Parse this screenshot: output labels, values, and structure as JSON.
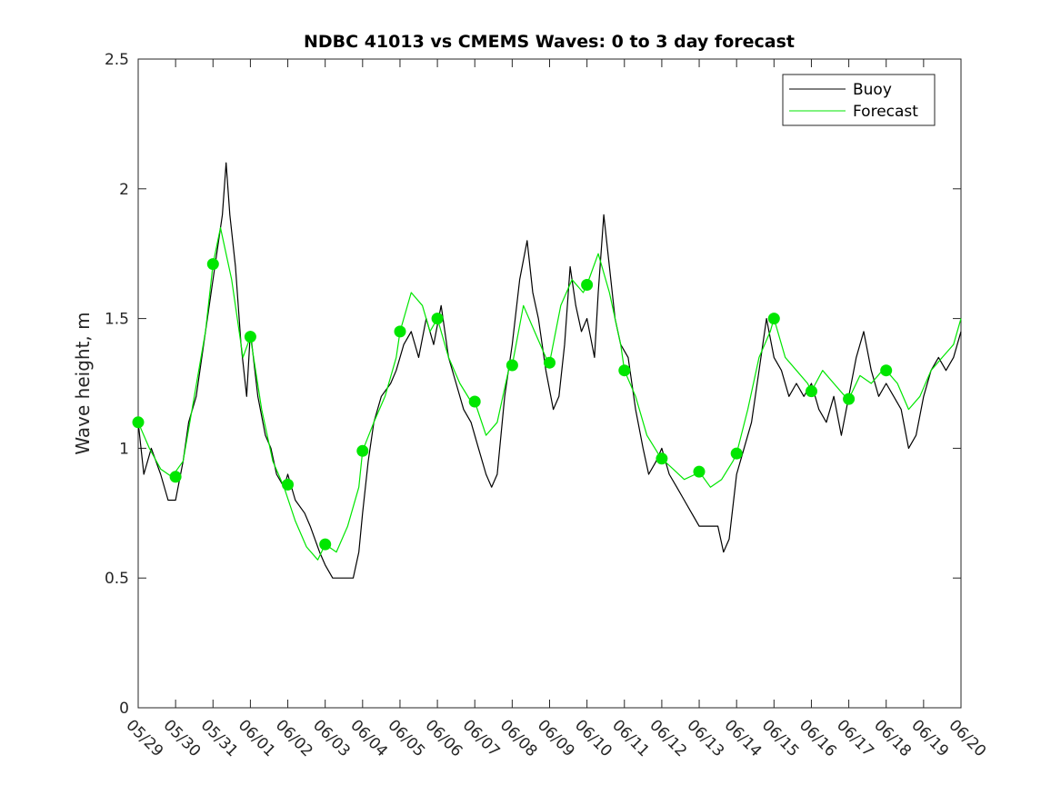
{
  "chart_data": {
    "type": "line",
    "title": "NDBC 41013 vs CMEMS Waves: 0 to 3 day forecast",
    "xlabel": "",
    "ylabel": "Wave height, m",
    "ylim": [
      0,
      2.5
    ],
    "yticks": [
      "0",
      "0.5",
      "1",
      "1.5",
      "2",
      "2.5"
    ],
    "xticks": [
      "05/29",
      "05/30",
      "05/31",
      "06/01",
      "06/02",
      "06/03",
      "06/04",
      "06/05",
      "06/06",
      "06/07",
      "06/08",
      "06/09",
      "06/10",
      "06/11",
      "06/12",
      "06/13",
      "06/14",
      "06/15",
      "06/16",
      "06/17",
      "06/18",
      "06/19",
      "06/20"
    ],
    "grid": false,
    "legend_position": "top-right",
    "legend": [
      {
        "label": "Buoy",
        "color": "#000000"
      },
      {
        "label": "Forecast",
        "color": "#00e600"
      }
    ],
    "series": [
      {
        "name": "Buoy",
        "color": "#000000",
        "points": [
          [
            0,
            1.1
          ],
          [
            0.15,
            0.9
          ],
          [
            0.35,
            1.0
          ],
          [
            0.6,
            0.9
          ],
          [
            0.8,
            0.8
          ],
          [
            1.0,
            0.8
          ],
          [
            1.2,
            0.95
          ],
          [
            1.35,
            1.1
          ],
          [
            1.55,
            1.2
          ],
          [
            1.75,
            1.4
          ],
          [
            1.95,
            1.6
          ],
          [
            2.1,
            1.75
          ],
          [
            2.25,
            1.9
          ],
          [
            2.35,
            2.1
          ],
          [
            2.45,
            1.9
          ],
          [
            2.6,
            1.7
          ],
          [
            2.75,
            1.4
          ],
          [
            2.9,
            1.2
          ],
          [
            3.0,
            1.45
          ],
          [
            3.2,
            1.2
          ],
          [
            3.4,
            1.05
          ],
          [
            3.55,
            1.0
          ],
          [
            3.7,
            0.9
          ],
          [
            3.9,
            0.85
          ],
          [
            4.0,
            0.9
          ],
          [
            4.2,
            0.8
          ],
          [
            4.45,
            0.75
          ],
          [
            4.6,
            0.7
          ],
          [
            4.85,
            0.6
          ],
          [
            5.0,
            0.55
          ],
          [
            5.2,
            0.5
          ],
          [
            5.4,
            0.5
          ],
          [
            5.6,
            0.5
          ],
          [
            5.75,
            0.5
          ],
          [
            5.9,
            0.6
          ],
          [
            6.0,
            0.75
          ],
          [
            6.15,
            0.95
          ],
          [
            6.3,
            1.1
          ],
          [
            6.5,
            1.2
          ],
          [
            6.75,
            1.25
          ],
          [
            6.9,
            1.3
          ],
          [
            7.1,
            1.4
          ],
          [
            7.3,
            1.45
          ],
          [
            7.5,
            1.35
          ],
          [
            7.7,
            1.5
          ],
          [
            7.9,
            1.4
          ],
          [
            8.1,
            1.55
          ],
          [
            8.3,
            1.35
          ],
          [
            8.5,
            1.25
          ],
          [
            8.7,
            1.15
          ],
          [
            8.9,
            1.1
          ],
          [
            9.1,
            1.0
          ],
          [
            9.3,
            0.9
          ],
          [
            9.45,
            0.85
          ],
          [
            9.6,
            0.9
          ],
          [
            9.8,
            1.2
          ],
          [
            10.0,
            1.4
          ],
          [
            10.2,
            1.65
          ],
          [
            10.4,
            1.8
          ],
          [
            10.55,
            1.6
          ],
          [
            10.7,
            1.5
          ],
          [
            10.9,
            1.3
          ],
          [
            11.1,
            1.15
          ],
          [
            11.25,
            1.2
          ],
          [
            11.4,
            1.4
          ],
          [
            11.55,
            1.7
          ],
          [
            11.7,
            1.55
          ],
          [
            11.85,
            1.45
          ],
          [
            12.0,
            1.5
          ],
          [
            12.2,
            1.35
          ],
          [
            12.3,
            1.6
          ],
          [
            12.45,
            1.9
          ],
          [
            12.6,
            1.7
          ],
          [
            12.75,
            1.5
          ],
          [
            12.9,
            1.4
          ],
          [
            13.1,
            1.35
          ],
          [
            13.3,
            1.15
          ],
          [
            13.5,
            1.0
          ],
          [
            13.65,
            0.9
          ],
          [
            13.85,
            0.95
          ],
          [
            14.0,
            1.0
          ],
          [
            14.2,
            0.9
          ],
          [
            14.4,
            0.85
          ],
          [
            14.6,
            0.8
          ],
          [
            14.8,
            0.75
          ],
          [
            15.0,
            0.7
          ],
          [
            15.3,
            0.7
          ],
          [
            15.5,
            0.7
          ],
          [
            15.65,
            0.6
          ],
          [
            15.8,
            0.65
          ],
          [
            16.0,
            0.9
          ],
          [
            16.2,
            1.0
          ],
          [
            16.4,
            1.1
          ],
          [
            16.6,
            1.3
          ],
          [
            16.8,
            1.5
          ],
          [
            17.0,
            1.35
          ],
          [
            17.2,
            1.3
          ],
          [
            17.4,
            1.2
          ],
          [
            17.6,
            1.25
          ],
          [
            17.8,
            1.2
          ],
          [
            18.0,
            1.25
          ],
          [
            18.2,
            1.15
          ],
          [
            18.4,
            1.1
          ],
          [
            18.6,
            1.2
          ],
          [
            18.8,
            1.05
          ],
          [
            19.0,
            1.2
          ],
          [
            19.2,
            1.35
          ],
          [
            19.4,
            1.45
          ],
          [
            19.6,
            1.3
          ],
          [
            19.8,
            1.2
          ],
          [
            20.0,
            1.25
          ],
          [
            20.2,
            1.2
          ],
          [
            20.4,
            1.15
          ],
          [
            20.6,
            1.0
          ],
          [
            20.8,
            1.05
          ],
          [
            21.0,
            1.2
          ],
          [
            21.2,
            1.3
          ],
          [
            21.4,
            1.35
          ],
          [
            21.6,
            1.3
          ],
          [
            21.8,
            1.35
          ],
          [
            22.0,
            1.45
          ]
        ]
      },
      {
        "name": "Forecast",
        "color": "#00e600",
        "points": [
          [
            0,
            1.1
          ],
          [
            0.3,
            1.0
          ],
          [
            0.6,
            0.92
          ],
          [
            0.9,
            0.89
          ],
          [
            1.2,
            0.95
          ],
          [
            1.5,
            1.2
          ],
          [
            1.8,
            1.45
          ],
          [
            2.0,
            1.71
          ],
          [
            2.2,
            1.85
          ],
          [
            2.5,
            1.65
          ],
          [
            2.8,
            1.35
          ],
          [
            3.0,
            1.43
          ],
          [
            3.3,
            1.15
          ],
          [
            3.6,
            0.95
          ],
          [
            3.9,
            0.85
          ],
          [
            4.2,
            0.72
          ],
          [
            4.5,
            0.62
          ],
          [
            4.8,
            0.57
          ],
          [
            5.0,
            0.63
          ],
          [
            5.3,
            0.6
          ],
          [
            5.6,
            0.7
          ],
          [
            5.9,
            0.85
          ],
          [
            6.0,
            0.99
          ],
          [
            6.3,
            1.1
          ],
          [
            6.6,
            1.2
          ],
          [
            6.9,
            1.35
          ],
          [
            7.0,
            1.45
          ],
          [
            7.3,
            1.6
          ],
          [
            7.6,
            1.55
          ],
          [
            7.8,
            1.45
          ],
          [
            8.0,
            1.5
          ],
          [
            8.3,
            1.35
          ],
          [
            8.6,
            1.25
          ],
          [
            8.9,
            1.18
          ],
          [
            9.0,
            1.18
          ],
          [
            9.3,
            1.05
          ],
          [
            9.6,
            1.1
          ],
          [
            9.9,
            1.3
          ],
          [
            10.0,
            1.32
          ],
          [
            10.3,
            1.55
          ],
          [
            10.6,
            1.45
          ],
          [
            10.9,
            1.35
          ],
          [
            11.0,
            1.33
          ],
          [
            11.3,
            1.55
          ],
          [
            11.6,
            1.65
          ],
          [
            11.9,
            1.6
          ],
          [
            12.0,
            1.63
          ],
          [
            12.3,
            1.75
          ],
          [
            12.6,
            1.6
          ],
          [
            12.9,
            1.4
          ],
          [
            13.0,
            1.3
          ],
          [
            13.3,
            1.2
          ],
          [
            13.6,
            1.05
          ],
          [
            13.9,
            0.98
          ],
          [
            14.0,
            0.96
          ],
          [
            14.3,
            0.92
          ],
          [
            14.6,
            0.88
          ],
          [
            14.9,
            0.9
          ],
          [
            15.0,
            0.91
          ],
          [
            15.3,
            0.85
          ],
          [
            15.6,
            0.88
          ],
          [
            15.9,
            0.95
          ],
          [
            16.0,
            0.98
          ],
          [
            16.3,
            1.15
          ],
          [
            16.6,
            1.35
          ],
          [
            16.9,
            1.45
          ],
          [
            17.0,
            1.5
          ],
          [
            17.3,
            1.35
          ],
          [
            17.6,
            1.3
          ],
          [
            17.9,
            1.25
          ],
          [
            18.0,
            1.22
          ],
          [
            18.3,
            1.3
          ],
          [
            18.6,
            1.25
          ],
          [
            18.9,
            1.2
          ],
          [
            19.0,
            1.19
          ],
          [
            19.3,
            1.28
          ],
          [
            19.6,
            1.25
          ],
          [
            19.9,
            1.3
          ],
          [
            20.0,
            1.3
          ],
          [
            20.3,
            1.25
          ],
          [
            20.6,
            1.15
          ],
          [
            20.9,
            1.2
          ],
          [
            21.2,
            1.3
          ],
          [
            21.5,
            1.35
          ],
          [
            21.8,
            1.4
          ],
          [
            22.0,
            1.5
          ]
        ]
      }
    ],
    "markers": {
      "series": "Forecast",
      "color": "#00e600",
      "points": [
        [
          0,
          1.1
        ],
        [
          1,
          0.89
        ],
        [
          2,
          1.71
        ],
        [
          3,
          1.43
        ],
        [
          4,
          0.86
        ],
        [
          5,
          0.63
        ],
        [
          6,
          0.99
        ],
        [
          7,
          1.45
        ],
        [
          8,
          1.5
        ],
        [
          9,
          1.18
        ],
        [
          10,
          1.32
        ],
        [
          11,
          1.33
        ],
        [
          12,
          1.63
        ],
        [
          13,
          1.3
        ],
        [
          14,
          0.96
        ],
        [
          15,
          0.91
        ],
        [
          16,
          0.98
        ],
        [
          17,
          1.5
        ],
        [
          18,
          1.22
        ],
        [
          19,
          1.19
        ],
        [
          20,
          1.3
        ]
      ]
    }
  }
}
